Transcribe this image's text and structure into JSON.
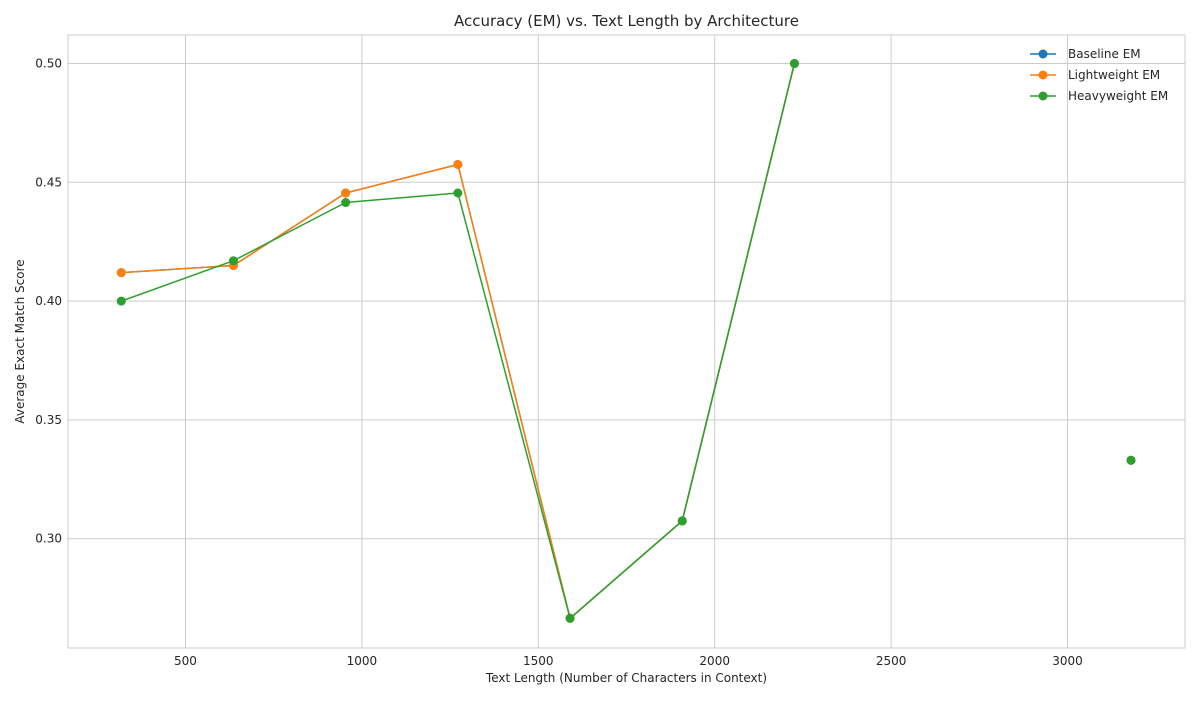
{
  "chart_data": {
    "type": "line",
    "title": "Accuracy (EM) vs. Text Length by Architecture",
    "xlabel": "Text Length (Number of Characters in Context)",
    "ylabel": "Average Exact Match Score",
    "xlim": [
      167,
      3333
    ],
    "ylim": [
      0.254,
      0.512
    ],
    "xticks": [
      500,
      1000,
      1500,
      2000,
      2500,
      3000
    ],
    "yticks": [
      0.3,
      0.35,
      0.4,
      0.45,
      0.5
    ],
    "xtick_labels": [
      "500",
      "1000",
      "1500",
      "2000",
      "2500",
      "3000"
    ],
    "ytick_labels": [
      "0.30",
      "0.35",
      "0.40",
      "0.45",
      "0.50"
    ],
    "grid": true,
    "legend_position": "top-right",
    "series": [
      {
        "name": "Baseline EM",
        "color": "#1f77b4",
        "x": [
          318,
          636,
          954,
          1272,
          1590,
          1908,
          2226
        ],
        "y": [
          0.412,
          0.415,
          0.4455,
          0.4575,
          0.2665,
          0.3075,
          0.5
        ],
        "isolated": {
          "x": [
            3180
          ],
          "y": [
            0.333
          ]
        }
      },
      {
        "name": "Lightweight EM",
        "color": "#ff7f0e",
        "x": [
          318,
          636,
          954,
          1272,
          1590,
          1908,
          2226
        ],
        "y": [
          0.412,
          0.415,
          0.4455,
          0.4575,
          0.2665,
          0.3075,
          0.5
        ],
        "isolated": {
          "x": [
            3180
          ],
          "y": [
            0.333
          ]
        }
      },
      {
        "name": "Heavyweight EM",
        "color": "#2ca02c",
        "x": [
          318,
          636,
          954,
          1272,
          1590,
          1908,
          2226
        ],
        "y": [
          0.4,
          0.417,
          0.4415,
          0.4455,
          0.2665,
          0.3075,
          0.5
        ],
        "isolated": {
          "x": [
            3180
          ],
          "y": [
            0.333
          ]
        }
      }
    ]
  }
}
